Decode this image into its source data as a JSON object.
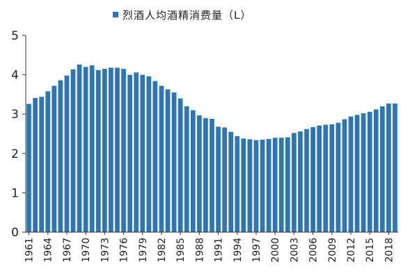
{
  "chart_data": {
    "type": "bar",
    "title": "",
    "xlabel": "",
    "ylabel": "",
    "legend": {
      "label": "烈酒人均酒精消费量（L）",
      "placement": "top-center"
    },
    "color": "#2E75B6",
    "ylim": [
      0,
      5
    ],
    "yticks": [
      0,
      1,
      2,
      3,
      4,
      5
    ],
    "grid": false,
    "xtick_labels": [
      "1961",
      "1964",
      "1967",
      "1970",
      "1973",
      "1976",
      "1979",
      "1982",
      "1985",
      "1988",
      "1991",
      "1994",
      "1997",
      "2000",
      "2003",
      "2006",
      "2009",
      "2012",
      "2015",
      "2018"
    ],
    "categories": [
      1961,
      1962,
      1963,
      1964,
      1965,
      1966,
      1967,
      1968,
      1969,
      1970,
      1971,
      1972,
      1973,
      1974,
      1975,
      1976,
      1977,
      1978,
      1979,
      1980,
      1981,
      1982,
      1983,
      1984,
      1985,
      1986,
      1987,
      1988,
      1989,
      1990,
      1991,
      1992,
      1993,
      1994,
      1995,
      1996,
      1997,
      1998,
      1999,
      2000,
      2001,
      2002,
      2003,
      2004,
      2005,
      2006,
      2007,
      2008,
      2009,
      2010,
      2011,
      2012,
      2013,
      2014,
      2015,
      2016,
      2017,
      2018,
      2019
    ],
    "values": [
      3.26,
      3.41,
      3.44,
      3.58,
      3.72,
      3.86,
      3.98,
      4.14,
      4.26,
      4.2,
      4.24,
      4.12,
      4.15,
      4.18,
      4.18,
      4.15,
      4.0,
      4.06,
      4.0,
      3.96,
      3.84,
      3.72,
      3.63,
      3.55,
      3.4,
      3.2,
      3.1,
      2.97,
      2.9,
      2.88,
      2.68,
      2.66,
      2.55,
      2.44,
      2.38,
      2.36,
      2.34,
      2.35,
      2.37,
      2.4,
      2.4,
      2.41,
      2.52,
      2.56,
      2.62,
      2.67,
      2.71,
      2.73,
      2.74,
      2.78,
      2.87,
      2.94,
      2.98,
      3.02,
      3.06,
      3.12,
      3.2,
      3.27,
      3.27
    ]
  }
}
